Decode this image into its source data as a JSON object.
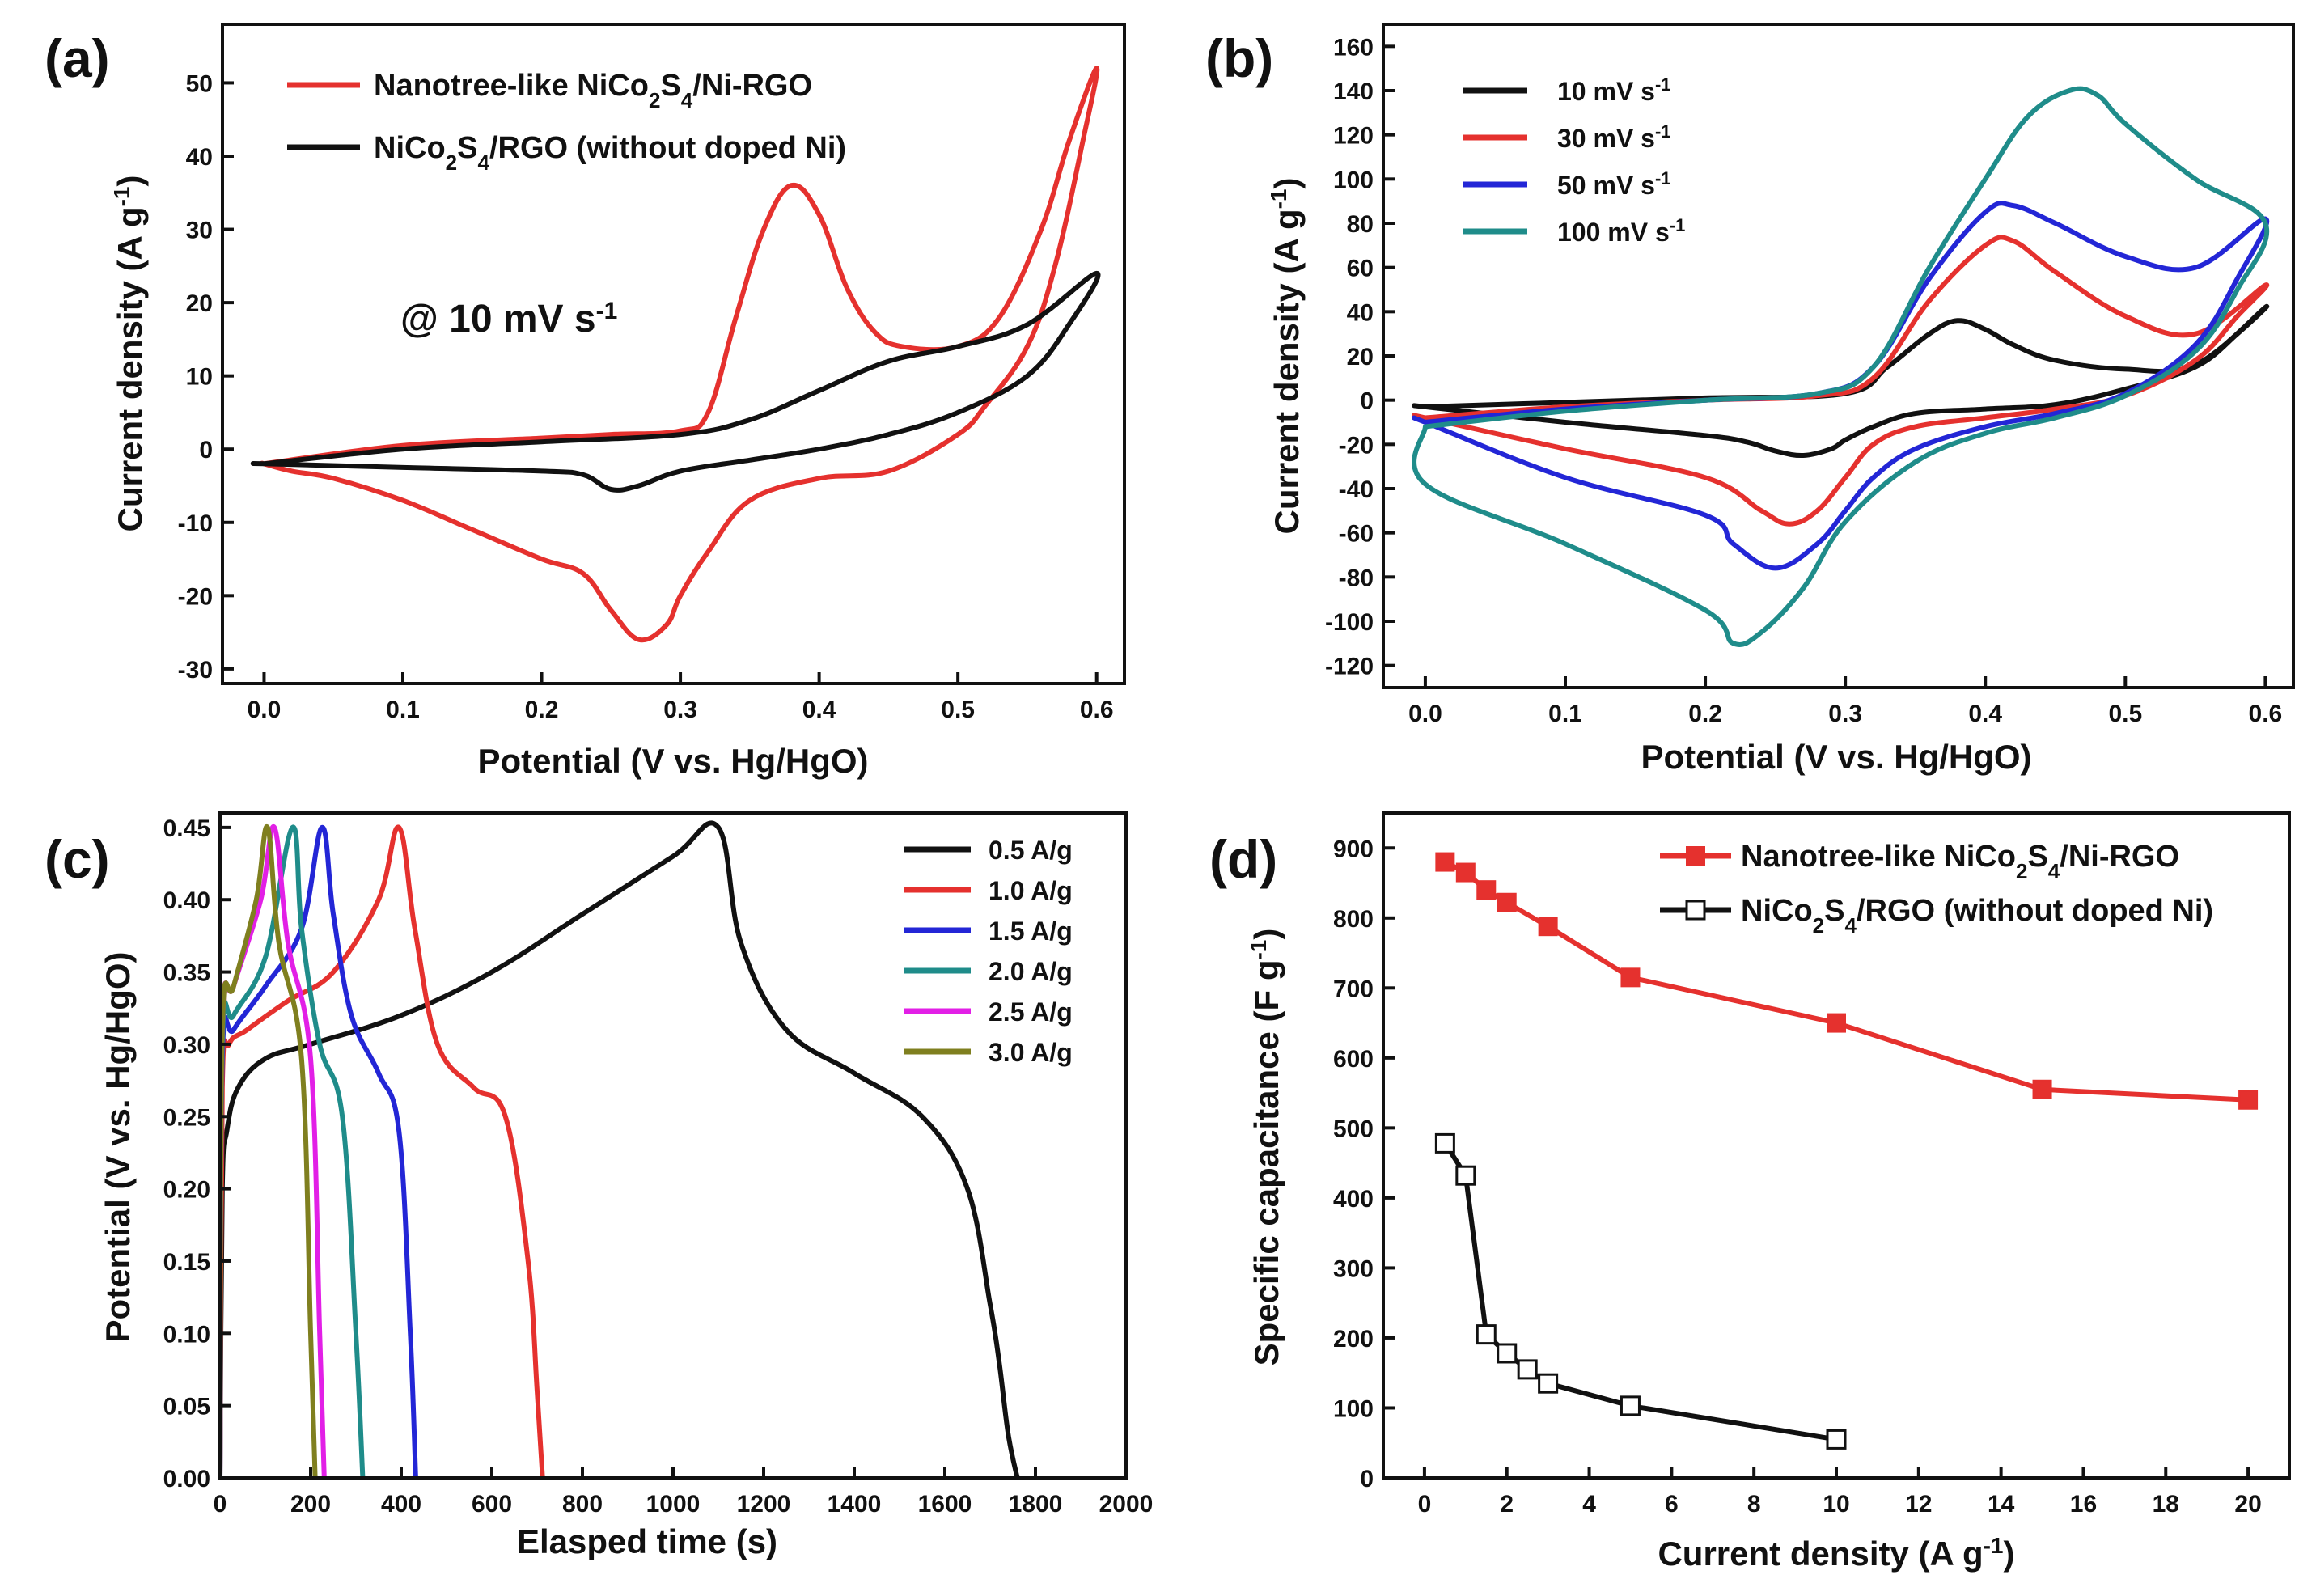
{
  "chart_data": [
    {
      "id": "a",
      "panel_label": "(a)",
      "type": "line",
      "xlabel": "Potential (V vs. Hg/HgO)",
      "ylabel": "Current density (A g-1)",
      "xlim": [
        -0.03,
        0.62
      ],
      "ylim": [
        -32,
        58
      ],
      "xticks": [
        0.0,
        0.1,
        0.2,
        0.3,
        0.4,
        0.5,
        0.6
      ],
      "xtick_labels": [
        "0.0",
        "0.1",
        "0.2",
        "0.3",
        "0.4",
        "0.5",
        "0.6"
      ],
      "yticks": [
        -30,
        -20,
        -10,
        0,
        10,
        20,
        30,
        40,
        50
      ],
      "ytick_labels": [
        "-30",
        "-20",
        "-10",
        "0",
        "10",
        "20",
        "30",
        "40",
        "50"
      ],
      "annotation": "@ 10 mV s-1",
      "legend_position": "top-left",
      "series": [
        {
          "name": "Nanotree-like NiCo2S4/Ni-RGO",
          "color": "#e5312e",
          "x": [
            0.0,
            0.1,
            0.2,
            0.25,
            0.3,
            0.32,
            0.34,
            0.36,
            0.38,
            0.4,
            0.42,
            0.44,
            0.46,
            0.5,
            0.53,
            0.56,
            0.58,
            0.6,
            0.59,
            0.57,
            0.55,
            0.52,
            0.5,
            0.45,
            0.4,
            0.35,
            0.32,
            0.3,
            0.29,
            0.27,
            0.25,
            0.23,
            0.2,
            0.15,
            0.1,
            0.05,
            0.02,
            0.0
          ],
          "y": [
            -2,
            0.5,
            1.5,
            2,
            2.5,
            5,
            18,
            30,
            36,
            32,
            22,
            16,
            14,
            14,
            18,
            30,
            42,
            52,
            42,
            25,
            14,
            6,
            2,
            -3,
            -4,
            -7,
            -14,
            -20,
            -24,
            -26,
            -22,
            -17,
            -15,
            -11,
            -7,
            -4,
            -3,
            -2
          ]
        },
        {
          "name": "NiCo2S4/RGO (without doped Ni)",
          "color": "#111111",
          "x": [
            0.0,
            0.1,
            0.2,
            0.3,
            0.35,
            0.4,
            0.45,
            0.5,
            0.55,
            0.6,
            0.58,
            0.55,
            0.5,
            0.45,
            0.4,
            0.35,
            0.3,
            0.27,
            0.25,
            0.23,
            0.2,
            0.1,
            0.0
          ],
          "y": [
            -2,
            0,
            1,
            2,
            4,
            8,
            12,
            14,
            17,
            24,
            17,
            10,
            5,
            2,
            0,
            -1.5,
            -3,
            -5,
            -5.5,
            -3.5,
            -3,
            -2.5,
            -2
          ]
        }
      ]
    },
    {
      "id": "b",
      "panel_label": "(b)",
      "type": "line",
      "xlabel": "Potential (V vs. Hg/HgO)",
      "ylabel": "Current density (A g-1)",
      "xlim": [
        -0.03,
        0.62
      ],
      "ylim": [
        -130,
        170
      ],
      "xticks": [
        0.0,
        0.1,
        0.2,
        0.3,
        0.4,
        0.5,
        0.6
      ],
      "xtick_labels": [
        "0.0",
        "0.1",
        "0.2",
        "0.3",
        "0.4",
        "0.5",
        "0.6"
      ],
      "yticks": [
        -120,
        -100,
        -80,
        -60,
        -40,
        -20,
        0,
        20,
        40,
        60,
        80,
        100,
        120,
        140,
        160
      ],
      "ytick_labels": [
        "-120",
        "-100",
        "-80",
        "-60",
        "-40",
        "-20",
        "0",
        "20",
        "40",
        "60",
        "80",
        "100",
        "120",
        "140",
        "160"
      ],
      "legend_position": "top-left",
      "series": [
        {
          "name": "10 mV s-1",
          "color": "#111111",
          "x": [
            0.0,
            0.1,
            0.2,
            0.3,
            0.33,
            0.36,
            0.38,
            0.4,
            0.42,
            0.45,
            0.5,
            0.55,
            0.6,
            0.58,
            0.55,
            0.5,
            0.45,
            0.4,
            0.35,
            0.32,
            0.3,
            0.29,
            0.27,
            0.25,
            0.23,
            0.2,
            0.1,
            0.0
          ],
          "y": [
            -3,
            -1,
            1,
            3,
            15,
            30,
            36,
            32,
            25,
            18,
            14,
            16,
            42,
            30,
            15,
            5,
            -2,
            -4,
            -6,
            -12,
            -18,
            -22,
            -25,
            -23,
            -19,
            -16,
            -10,
            -3
          ]
        },
        {
          "name": "30 mV s-1",
          "color": "#e5312e",
          "x": [
            0.0,
            0.1,
            0.2,
            0.28,
            0.32,
            0.36,
            0.4,
            0.42,
            0.45,
            0.5,
            0.55,
            0.6,
            0.58,
            0.55,
            0.5,
            0.45,
            0.4,
            0.35,
            0.32,
            0.3,
            0.28,
            0.26,
            0.24,
            0.2,
            0.1,
            0.0
          ],
          "y": [
            -8,
            -3,
            0,
            2,
            10,
            45,
            70,
            72,
            58,
            38,
            30,
            52,
            38,
            18,
            2,
            -4,
            -8,
            -12,
            -20,
            -35,
            -50,
            -56,
            -50,
            -35,
            -22,
            -8
          ]
        },
        {
          "name": "50 mV s-1",
          "color": "#2326d6",
          "x": [
            0.0,
            0.1,
            0.2,
            0.28,
            0.32,
            0.36,
            0.4,
            0.42,
            0.45,
            0.5,
            0.55,
            0.6,
            0.58,
            0.55,
            0.5,
            0.45,
            0.4,
            0.35,
            0.32,
            0.3,
            0.28,
            0.25,
            0.22,
            0.2,
            0.1,
            0.0
          ],
          "y": [
            -10,
            -4,
            0,
            3,
            15,
            55,
            85,
            88,
            80,
            65,
            60,
            82,
            55,
            25,
            3,
            -6,
            -12,
            -22,
            -35,
            -50,
            -65,
            -76,
            -65,
            -52,
            -35,
            -10
          ]
        },
        {
          "name": "100 mV s-1",
          "color": "#1f8c8a",
          "x": [
            0.0,
            0.1,
            0.2,
            0.28,
            0.32,
            0.36,
            0.4,
            0.43,
            0.46,
            0.48,
            0.5,
            0.55,
            0.6,
            0.58,
            0.55,
            0.5,
            0.45,
            0.4,
            0.35,
            0.3,
            0.27,
            0.24,
            0.22,
            0.2,
            0.1,
            0.0
          ],
          "y": [
            -12,
            -5,
            0,
            3,
            15,
            60,
            100,
            128,
            140,
            138,
            125,
            100,
            80,
            50,
            22,
            2,
            -8,
            -15,
            -28,
            -55,
            -85,
            -105,
            -110,
            -95,
            -65,
            -38
          ]
        }
      ]
    },
    {
      "id": "c",
      "panel_label": "(c)",
      "type": "line",
      "xlabel": "Elasped time (s)",
      "ylabel": "Potential (V vs. Hg/HgO)",
      "xlim": [
        0,
        2000
      ],
      "ylim": [
        0,
        0.46
      ],
      "xticks": [
        0,
        200,
        400,
        600,
        800,
        1000,
        1200,
        1400,
        1600,
        1800,
        2000
      ],
      "xtick_labels": [
        "0",
        "200",
        "400",
        "600",
        "800",
        "1000",
        "1200",
        "1400",
        "1600",
        "1800",
        "2000"
      ],
      "yticks": [
        0.0,
        0.05,
        0.1,
        0.15,
        0.2,
        0.25,
        0.3,
        0.35,
        0.4,
        0.45
      ],
      "ytick_labels": [
        "0.00",
        "0.05",
        "0.10",
        "0.15",
        "0.20",
        "0.25",
        "0.30",
        "0.35",
        "0.40",
        "0.45"
      ],
      "legend_position": "top-right",
      "series": [
        {
          "name": "0.5 A/g",
          "color": "#111111",
          "x": [
            0,
            5,
            15,
            40,
            100,
            200,
            400,
            600,
            800,
            1000,
            1100,
            1150,
            1250,
            1400,
            1550,
            1650,
            1700,
            1720,
            1740,
            1760
          ],
          "y": [
            0.0,
            0.2,
            0.24,
            0.27,
            0.29,
            0.3,
            0.32,
            0.35,
            0.39,
            0.43,
            0.45,
            0.37,
            0.31,
            0.28,
            0.25,
            0.2,
            0.12,
            0.08,
            0.03,
            0.0
          ]
        },
        {
          "name": "1.0 A/g",
          "color": "#e5312e",
          "x": [
            0,
            5,
            20,
            60,
            150,
            250,
            350,
            395,
            430,
            480,
            560,
            630,
            680,
            700,
            712
          ],
          "y": [
            0.0,
            0.27,
            0.3,
            0.31,
            0.33,
            0.35,
            0.4,
            0.45,
            0.38,
            0.3,
            0.27,
            0.25,
            0.15,
            0.06,
            0.0
          ]
        },
        {
          "name": "1.5 A/g",
          "color": "#2326d6",
          "x": [
            0,
            5,
            30,
            100,
            180,
            225,
            250,
            290,
            350,
            395,
            420,
            432
          ],
          "y": [
            0.0,
            0.29,
            0.31,
            0.34,
            0.38,
            0.45,
            0.39,
            0.32,
            0.28,
            0.24,
            0.1,
            0.0
          ]
        },
        {
          "name": "2.0 A/g",
          "color": "#1f8c8a",
          "x": [
            0,
            5,
            30,
            100,
            160,
            180,
            220,
            270,
            300,
            315
          ],
          "y": [
            0.0,
            0.3,
            0.32,
            0.36,
            0.45,
            0.38,
            0.3,
            0.25,
            0.1,
            0.0
          ]
        },
        {
          "name": "2.5 A/g",
          "color": "#e21fe6",
          "x": [
            0,
            5,
            30,
            90,
            120,
            150,
            200,
            220,
            230
          ],
          "y": [
            0.0,
            0.31,
            0.34,
            0.4,
            0.45,
            0.37,
            0.29,
            0.1,
            0.0
          ]
        },
        {
          "name": "3.0 A/g",
          "color": "#7f7f1f",
          "x": [
            0,
            5,
            30,
            80,
            105,
            130,
            180,
            200,
            210
          ],
          "y": [
            0.0,
            0.31,
            0.34,
            0.4,
            0.45,
            0.37,
            0.29,
            0.1,
            0.0
          ]
        }
      ]
    },
    {
      "id": "d",
      "panel_label": "(d)",
      "type": "line",
      "xlabel": "Current density (A g-1)",
      "ylabel": "Specific capacitance (F g-1)",
      "xlim": [
        -1,
        21
      ],
      "ylim": [
        0,
        950
      ],
      "xticks": [
        0,
        2,
        4,
        6,
        8,
        10,
        12,
        14,
        16,
        18,
        20
      ],
      "xtick_labels": [
        "0",
        "2",
        "4",
        "6",
        "8",
        "10",
        "12",
        "14",
        "16",
        "18",
        "20"
      ],
      "yticks": [
        0,
        100,
        200,
        300,
        400,
        500,
        600,
        700,
        800,
        900
      ],
      "ytick_labels": [
        "0",
        "100",
        "200",
        "300",
        "400",
        "500",
        "600",
        "700",
        "800",
        "900"
      ],
      "legend_position": "top-right",
      "series": [
        {
          "name": "Nanotree-like NiCo2S4/Ni-RGO",
          "color": "#e5312e",
          "marker": "filled-square",
          "x": [
            0.5,
            1,
            1.5,
            2,
            3,
            5,
            10,
            15,
            20
          ],
          "y": [
            880,
            865,
            840,
            822,
            788,
            715,
            650,
            555,
            540
          ]
        },
        {
          "name": "NiCo2S4/RGO (without doped Ni)",
          "color": "#111111",
          "marker": "open-square",
          "x": [
            0.5,
            1,
            1.5,
            2,
            2.5,
            3,
            5,
            10
          ],
          "y": [
            478,
            432,
            205,
            178,
            155,
            135,
            103,
            55
          ]
        }
      ]
    }
  ]
}
